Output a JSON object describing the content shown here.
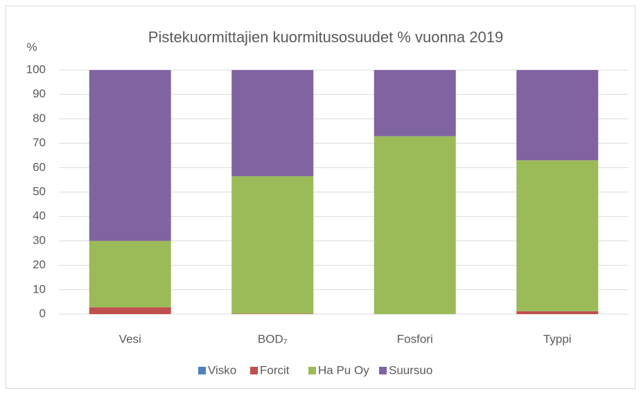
{
  "chart_data": {
    "type": "stacked_bar",
    "title": "Pistekuormittajien kuormitusosuudet % vuonna 2019",
    "y_label": "%",
    "categories": [
      "Vesi",
      "BOD₇",
      "Fosfori",
      "Typpi"
    ],
    "series": [
      {
        "name": "Visko",
        "color": "#4f81bd",
        "values": [
          0,
          0,
          0,
          0
        ]
      },
      {
        "name": "Forcit",
        "color": "#c0504d",
        "values": [
          2.8,
          0.2,
          0,
          1.2
        ]
      },
      {
        "name": "Ha Pu Oy",
        "color": "#9bbb59",
        "values": [
          27.2,
          56.3,
          72.9,
          61.8
        ]
      },
      {
        "name": "Suursuo",
        "color": "#8064a2",
        "values": [
          70,
          43.5,
          27.1,
          37
        ]
      }
    ],
    "ylim": [
      0,
      100
    ],
    "yticks": [
      0,
      10,
      20,
      30,
      40,
      50,
      60,
      70,
      80,
      90,
      100
    ],
    "grid": true,
    "legend": "bottom"
  }
}
